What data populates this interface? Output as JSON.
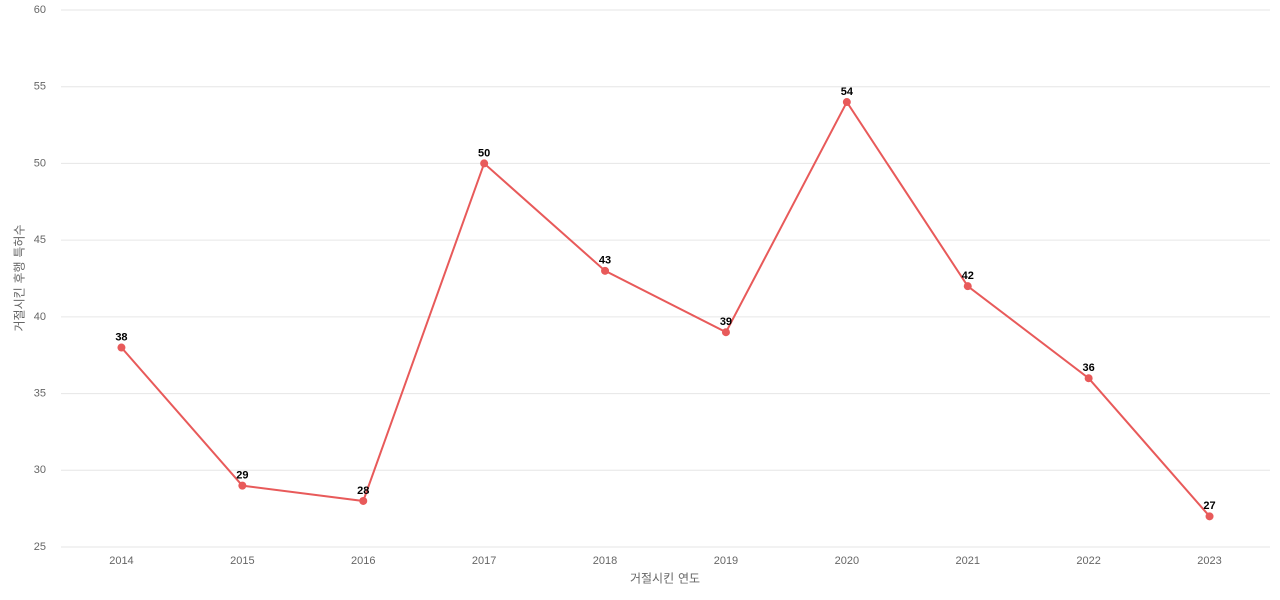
{
  "chart_data": {
    "type": "line",
    "x_label": "거절시킨 연도",
    "y_label": "거절시킨 후행 특허수",
    "categories": [
      "2014",
      "2015",
      "2016",
      "2017",
      "2018",
      "2019",
      "2020",
      "2021",
      "2022",
      "2023"
    ],
    "series": [
      {
        "name": "count",
        "color": "#e85a5a",
        "values": [
          38,
          29,
          28,
          50,
          43,
          39,
          54,
          42,
          36,
          27
        ]
      }
    ],
    "ylim": [
      25,
      60
    ],
    "yticks": [
      25,
      30,
      35,
      40,
      45,
      50,
      55,
      60
    ],
    "grid": true
  }
}
